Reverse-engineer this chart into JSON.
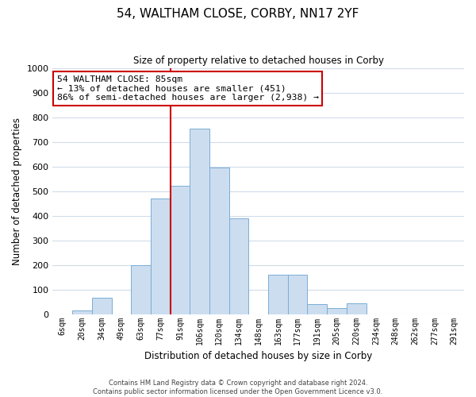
{
  "title": "54, WALTHAM CLOSE, CORBY, NN17 2YF",
  "subtitle": "Size of property relative to detached houses in Corby",
  "xlabel": "Distribution of detached houses by size in Corby",
  "ylabel": "Number of detached properties",
  "bar_labels": [
    "6sqm",
    "20sqm",
    "34sqm",
    "49sqm",
    "63sqm",
    "77sqm",
    "91sqm",
    "106sqm",
    "120sqm",
    "134sqm",
    "148sqm",
    "163sqm",
    "177sqm",
    "191sqm",
    "205sqm",
    "220sqm",
    "234sqm",
    "248sqm",
    "262sqm",
    "277sqm",
    "291sqm"
  ],
  "bar_values": [
    0,
    15,
    65,
    0,
    200,
    470,
    520,
    755,
    595,
    390,
    0,
    160,
    160,
    40,
    25,
    45,
    0,
    0,
    0,
    0,
    0
  ],
  "bar_color": "#ccddf0",
  "bar_edge_color": "#7aaed4",
  "vline_x_index": 6,
  "vline_color": "#cc0000",
  "annotation_text": "54 WALTHAM CLOSE: 85sqm\n← 13% of detached houses are smaller (451)\n86% of semi-detached houses are larger (2,938) →",
  "annotation_box_edge_color": "#cc0000",
  "ylim": [
    0,
    1000
  ],
  "yticks": [
    0,
    100,
    200,
    300,
    400,
    500,
    600,
    700,
    800,
    900,
    1000
  ],
  "footnote": "Contains HM Land Registry data © Crown copyright and database right 2024.\nContains public sector information licensed under the Open Government Licence v3.0.",
  "bg_color": "#ffffff",
  "grid_color": "#d0dcea"
}
